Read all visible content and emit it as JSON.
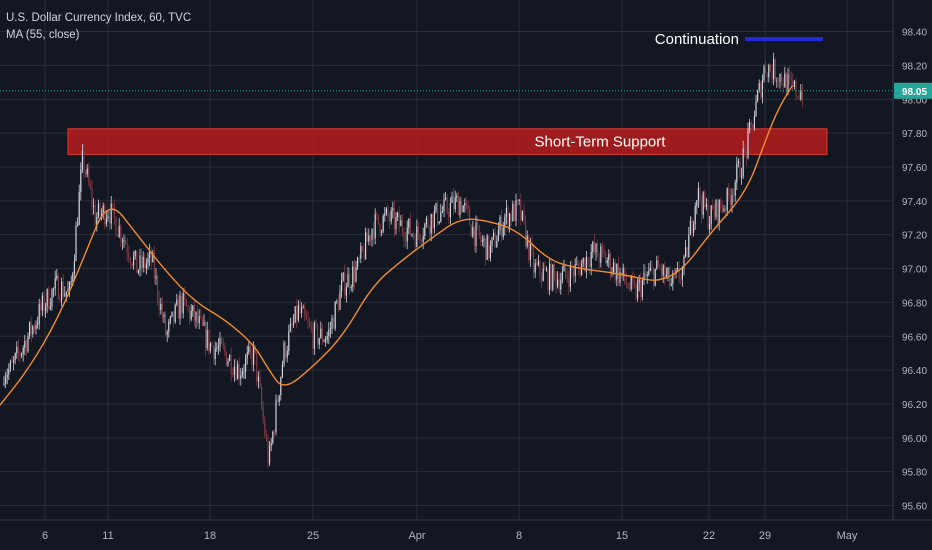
{
  "legend": {
    "symbol_line": "U.S. Dollar Currency Index, 60, TVC",
    "indicator_line": "MA (55, close)"
  },
  "annotations": {
    "support_label": "Short-Term Support",
    "continuation_label": "Continuation"
  },
  "colors": {
    "background": "#131722",
    "grid": "#2a2e39",
    "up_candle": "#cfd2da",
    "down_candle": "#7e3a43",
    "moving_average": "#f08c30",
    "support_fill": "#b71c1c",
    "support_border": "#e53935",
    "continuation_line": "#1f2bd6",
    "current_price_label": "#26a69a",
    "axis_text": "#b2b5be"
  },
  "chart_data": {
    "type": "candlestick",
    "title": "U.S. Dollar Currency Index, 60, TVC",
    "x_tick_labels": [
      "6",
      "11",
      "18",
      "25",
      "Apr",
      "8",
      "15",
      "22",
      "29",
      "May"
    ],
    "y_ticks": [
      95.6,
      95.8,
      96.0,
      96.2,
      96.4,
      96.6,
      96.8,
      97.0,
      97.2,
      97.4,
      97.6,
      97.8,
      98.0,
      98.2,
      98.4
    ],
    "ylim": [
      95.55,
      98.48
    ],
    "current_price": 98.05,
    "current_price_label": "98.05",
    "price_path": [
      {
        "date": "Mar 4",
        "price": 96.4
      },
      {
        "date": "Mar 6",
        "price": 96.8
      },
      {
        "date": "Mar 7",
        "price": 96.9
      },
      {
        "date": "Mar 8",
        "price": 96.85
      },
      {
        "date": "Mar 9",
        "price": 97.65
      },
      {
        "date": "Mar 10",
        "price": 97.3
      },
      {
        "date": "Mar 11",
        "price": 97.35
      },
      {
        "date": "Mar 12",
        "price": 97.2
      },
      {
        "date": "Mar 13",
        "price": 97.0
      },
      {
        "date": "Mar 14",
        "price": 97.05
      },
      {
        "date": "Mar 15",
        "price": 96.6
      },
      {
        "date": "Mar 16",
        "price": 96.8
      },
      {
        "date": "Mar 17",
        "price": 96.7
      },
      {
        "date": "Mar 18",
        "price": 96.55
      },
      {
        "date": "Mar 19",
        "price": 96.5
      },
      {
        "date": "Mar 20",
        "price": 96.4
      },
      {
        "date": "Mar 21",
        "price": 96.5
      },
      {
        "date": "Mar 22",
        "price": 95.85
      },
      {
        "date": "Mar 23",
        "price": 96.5
      },
      {
        "date": "Mar 24",
        "price": 96.75
      },
      {
        "date": "Mar 25",
        "price": 96.6
      },
      {
        "date": "Mar 26",
        "price": 96.6
      },
      {
        "date": "Mar 27",
        "price": 96.9
      },
      {
        "date": "Mar 28",
        "price": 97.0
      },
      {
        "date": "Mar 29",
        "price": 97.25
      },
      {
        "date": "Mar 30",
        "price": 97.3
      },
      {
        "date": "Apr 1",
        "price": 97.2
      },
      {
        "date": "Apr 2",
        "price": 97.3
      },
      {
        "date": "Apr 3",
        "price": 97.35
      },
      {
        "date": "Apr 4",
        "price": 97.4
      },
      {
        "date": "Apr 5",
        "price": 97.2
      },
      {
        "date": "Apr 6",
        "price": 97.1
      },
      {
        "date": "Apr 7",
        "price": 97.3
      },
      {
        "date": "Apr 8",
        "price": 97.35
      },
      {
        "date": "Apr 9",
        "price": 97.0
      },
      {
        "date": "Apr 10",
        "price": 96.95
      },
      {
        "date": "Apr 11",
        "price": 96.95
      },
      {
        "date": "Apr 12",
        "price": 97.0
      },
      {
        "date": "Apr 13",
        "price": 97.1
      },
      {
        "date": "Apr 14",
        "price": 97.05
      },
      {
        "date": "Apr 15",
        "price": 96.95
      },
      {
        "date": "Apr 16",
        "price": 96.85
      },
      {
        "date": "Apr 17",
        "price": 96.95
      },
      {
        "date": "Apr 18",
        "price": 97.0
      },
      {
        "date": "Apr 19",
        "price": 96.9
      },
      {
        "date": "Apr 20",
        "price": 97.0
      },
      {
        "date": "Apr 21",
        "price": 97.45
      },
      {
        "date": "Apr 22",
        "price": 97.3
      },
      {
        "date": "Apr 23",
        "price": 97.4
      },
      {
        "date": "Apr 24",
        "price": 97.7
      },
      {
        "date": "Apr 25",
        "price": 98.2
      },
      {
        "date": "Apr 26",
        "price": 98.15
      },
      {
        "date": "Apr 27",
        "price": 98.05
      }
    ],
    "moving_average": {
      "name": "MA (55, close)",
      "points": [
        {
          "date": "Mar 3",
          "value": 96.15
        },
        {
          "date": "Mar 5",
          "value": 96.4
        },
        {
          "date": "Mar 7",
          "value": 96.7
        },
        {
          "date": "Mar 9",
          "value": 97.05
        },
        {
          "date": "Mar 11",
          "value": 97.42
        },
        {
          "date": "Mar 13",
          "value": 97.2
        },
        {
          "date": "Mar 15",
          "value": 96.98
        },
        {
          "date": "Mar 17",
          "value": 96.8
        },
        {
          "date": "Mar 19",
          "value": 96.7
        },
        {
          "date": "Mar 21",
          "value": 96.55
        },
        {
          "date": "Mar 22",
          "value": 96.4
        },
        {
          "date": "Mar 23",
          "value": 96.28
        },
        {
          "date": "Mar 25",
          "value": 96.42
        },
        {
          "date": "Mar 27",
          "value": 96.6
        },
        {
          "date": "Mar 29",
          "value": 96.9
        },
        {
          "date": "Mar 31",
          "value": 97.05
        },
        {
          "date": "Apr 2",
          "value": 97.18
        },
        {
          "date": "Apr 4",
          "value": 97.3
        },
        {
          "date": "Apr 6",
          "value": 97.28
        },
        {
          "date": "Apr 8",
          "value": 97.22
        },
        {
          "date": "Apr 10",
          "value": 97.05
        },
        {
          "date": "Apr 12",
          "value": 97.0
        },
        {
          "date": "Apr 14",
          "value": 96.98
        },
        {
          "date": "Apr 16",
          "value": 96.95
        },
        {
          "date": "Apr 18",
          "value": 96.92
        },
        {
          "date": "Apr 20",
          "value": 97.0
        },
        {
          "date": "Apr 22",
          "value": 97.2
        },
        {
          "date": "Apr 24",
          "value": 97.45
        },
        {
          "date": "Apr 25",
          "value": 97.75
        },
        {
          "date": "Apr 26",
          "value": 97.95
        },
        {
          "date": "Apr 27",
          "value": 98.08
        }
      ]
    },
    "support_zone": {
      "label": "Short-Term Support",
      "low": 97.71,
      "high": 97.79,
      "start": "Mar 8",
      "end": "Apr 29"
    },
    "continuation_level": {
      "label": "Continuation",
      "value": 98.35,
      "start": "Apr 24",
      "end": "Apr 29"
    }
  }
}
